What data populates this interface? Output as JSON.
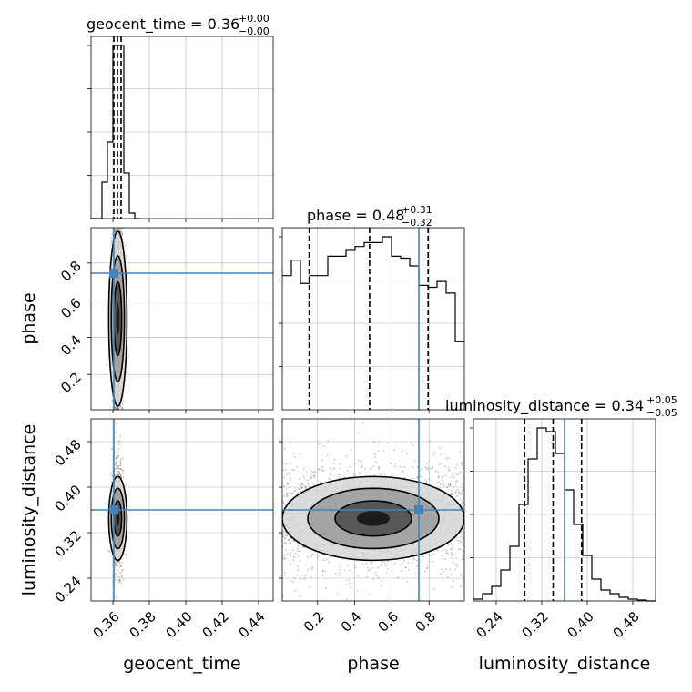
{
  "chart_data": {
    "type": "corner",
    "parameters": [
      "geocent_time",
      "phase",
      "luminosity_distance"
    ],
    "axis_labels": {
      "geocent_time": "geocent_time",
      "phase": "phase",
      "luminosity_distance": "luminosity_distance"
    },
    "ranges": {
      "geocent_time": [
        0.348,
        0.448
      ],
      "phase": [
        0.01,
        0.99
      ],
      "luminosity_distance": [
        0.2,
        0.52
      ]
    },
    "ticks": {
      "geocent_time": [
        "0.36",
        "0.38",
        "0.40",
        "0.42",
        "0.44"
      ],
      "phase": [
        "0.2",
        "0.4",
        "0.6",
        "0.8"
      ],
      "luminosity_distance": [
        "0.24",
        "0.32",
        "0.40",
        "0.48"
      ]
    },
    "truths": {
      "geocent_time": 0.3605,
      "phase": 0.745,
      "luminosity_distance": 0.36
    },
    "titles": [
      {
        "param": "geocent_time",
        "text": "geocent_time = 0.36",
        "sup": "+0.00",
        "sub": "−0.00"
      },
      {
        "param": "phase",
        "text": "phase = 0.48",
        "sup": "+0.31",
        "sub": "−0.32"
      },
      {
        "param": "luminosity_distance",
        "text": "luminosity_distance = 0.34",
        "sup": "+0.05",
        "sub": "−0.05"
      }
    ],
    "quantiles": {
      "geocent_time": [
        0.3605,
        0.3625,
        0.3645
      ],
      "phase": [
        0.155,
        0.48,
        0.795
      ],
      "luminosity_distance": [
        0.29,
        0.34,
        0.39
      ]
    },
    "histograms": {
      "geocent_time": {
        "edges": [
          0.348,
          0.351,
          0.354,
          0.357,
          0.36,
          0.363,
          0.366,
          0.369,
          0.372,
          0.375
        ],
        "counts": [
          0,
          0,
          0.2,
          0.42,
          0.95,
          0.95,
          0.25,
          0.03,
          0
        ]
      },
      "phase": {
        "edges": [
          0.01,
          0.059,
          0.108,
          0.157,
          0.206,
          0.255,
          0.304,
          0.353,
          0.402,
          0.451,
          0.5,
          0.549,
          0.598,
          0.647,
          0.696,
          0.745,
          0.794,
          0.843,
          0.892,
          0.941,
          0.99
        ],
        "counts": [
          0.69,
          0.77,
          0.65,
          0.69,
          0.69,
          0.79,
          0.79,
          0.82,
          0.84,
          0.86,
          0.86,
          0.89,
          0.79,
          0.78,
          0.74,
          0.64,
          0.63,
          0.66,
          0.6,
          0.35
        ]
      },
      "luminosity_distance": {
        "edges": [
          0.2,
          0.216,
          0.232,
          0.248,
          0.264,
          0.28,
          0.296,
          0.312,
          0.328,
          0.344,
          0.36,
          0.376,
          0.392,
          0.408,
          0.424,
          0.44,
          0.456,
          0.472,
          0.488,
          0.504,
          0.52
        ],
        "counts": [
          0.01,
          0.04,
          0.08,
          0.17,
          0.3,
          0.53,
          0.78,
          0.95,
          0.93,
          0.81,
          0.61,
          0.42,
          0.25,
          0.12,
          0.06,
          0.04,
          0.02,
          0.01,
          0.005,
          0.0
        ]
      }
    },
    "densities": {
      "phase_vs_geocent_time": {
        "center_x": 0.3627,
        "sigma_x": 0.0015,
        "center_y": 0.5,
        "sigma_y": 0.28
      },
      "luminosity_distance_vs_geocent_time": {
        "center_x": 0.3627,
        "sigma_x": 0.0017,
        "center_y": 0.345,
        "sigma_y": 0.05
      },
      "luminosity_distance_vs_phase": {
        "center_x": 0.5,
        "sigma_x": 0.28,
        "center_y": 0.345,
        "sigma_y": 0.05
      }
    },
    "colors": {
      "truth": "#4682b4",
      "hist": "#000000",
      "density": "#000000",
      "grid": "#b0b0b0"
    }
  }
}
